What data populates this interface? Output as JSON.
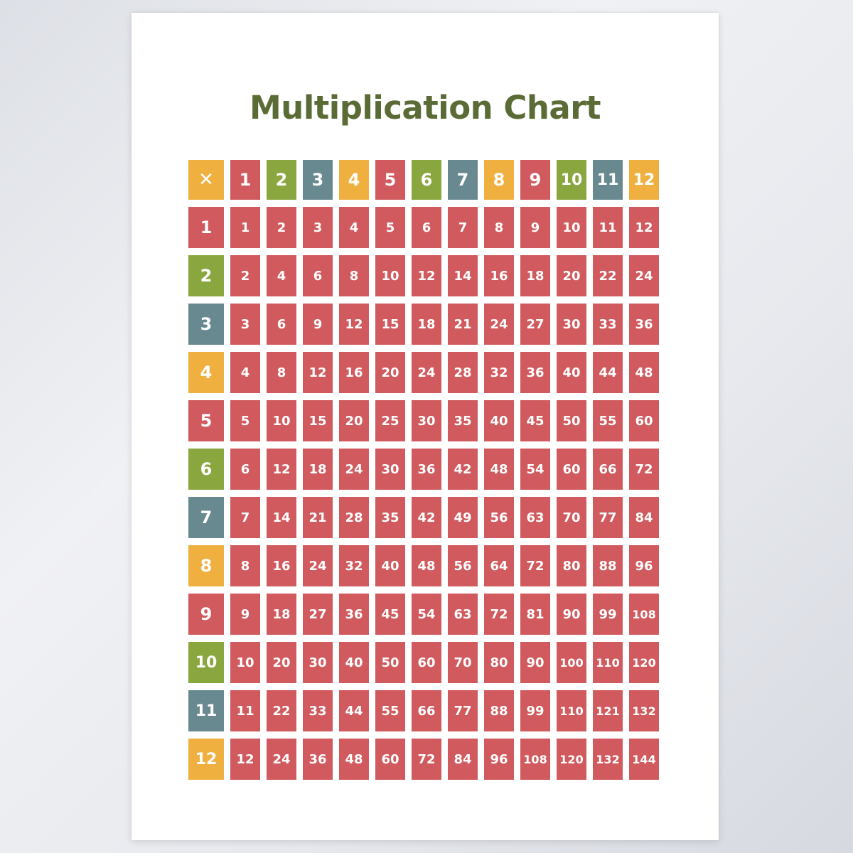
{
  "title": "Multiplication Chart",
  "corner_symbol": "✕",
  "colors": {
    "red": "#d05a5e",
    "green": "#8aa63f",
    "teal": "#68898f",
    "orange": "#f0b040",
    "title_green": "#5a6b35"
  },
  "header_color_cycle": [
    "red",
    "green",
    "teal",
    "orange"
  ],
  "column_headers": [
    "1",
    "2",
    "3",
    "4",
    "5",
    "6",
    "7",
    "8",
    "9",
    "10",
    "11",
    "12"
  ],
  "row_headers": [
    "1",
    "2",
    "3",
    "4",
    "5",
    "6",
    "7",
    "8",
    "9",
    "10",
    "11",
    "12"
  ],
  "rows": [
    [
      "1",
      "2",
      "3",
      "4",
      "5",
      "6",
      "7",
      "8",
      "9",
      "10",
      "11",
      "12"
    ],
    [
      "2",
      "4",
      "6",
      "8",
      "10",
      "12",
      "14",
      "16",
      "18",
      "20",
      "22",
      "24"
    ],
    [
      "3",
      "6",
      "9",
      "12",
      "15",
      "18",
      "21",
      "24",
      "27",
      "30",
      "33",
      "36"
    ],
    [
      "4",
      "8",
      "12",
      "16",
      "20",
      "24",
      "28",
      "32",
      "36",
      "40",
      "44",
      "48"
    ],
    [
      "5",
      "10",
      "15",
      "20",
      "25",
      "30",
      "35",
      "40",
      "45",
      "50",
      "55",
      "60"
    ],
    [
      "6",
      "12",
      "18",
      "24",
      "30",
      "36",
      "42",
      "48",
      "54",
      "60",
      "66",
      "72"
    ],
    [
      "7",
      "14",
      "21",
      "28",
      "35",
      "42",
      "49",
      "56",
      "63",
      "70",
      "77",
      "84"
    ],
    [
      "8",
      "16",
      "24",
      "32",
      "40",
      "48",
      "56",
      "64",
      "72",
      "80",
      "88",
      "96"
    ],
    [
      "9",
      "18",
      "27",
      "36",
      "45",
      "54",
      "63",
      "72",
      "81",
      "90",
      "99",
      "108"
    ],
    [
      "10",
      "20",
      "30",
      "40",
      "50",
      "60",
      "70",
      "80",
      "90",
      "100",
      "110",
      "120"
    ],
    [
      "11",
      "22",
      "33",
      "44",
      "55",
      "66",
      "77",
      "88",
      "99",
      "110",
      "121",
      "132"
    ],
    [
      "12",
      "24",
      "36",
      "48",
      "60",
      "72",
      "84",
      "96",
      "108",
      "120",
      "132",
      "144"
    ]
  ]
}
